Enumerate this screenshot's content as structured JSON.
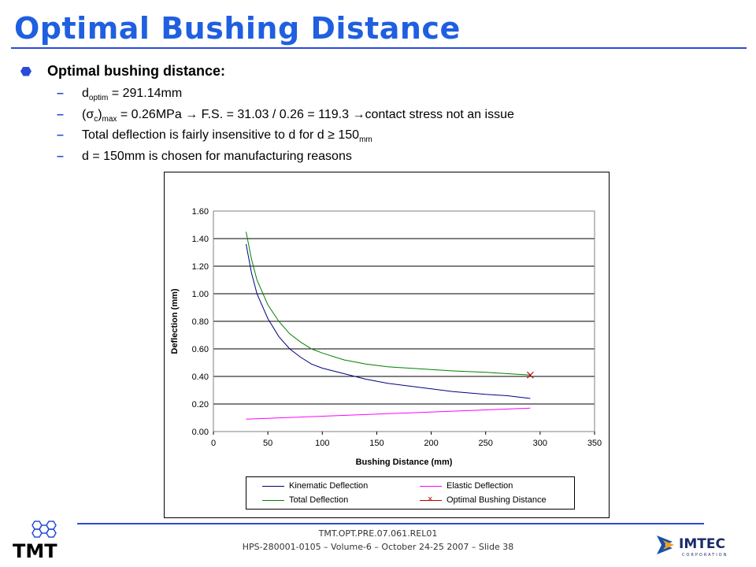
{
  "title": "Optimal Bushing Distance",
  "bullets": {
    "main": "Optimal bushing distance:",
    "line1_a": "d",
    "line1_sub": "optim",
    "line1_b": " = 291.14mm",
    "line2_a": " (σ",
    "line2_sub1": "c",
    "line2_b": ")",
    "line2_sub2": "max",
    "line2_c": " = 0.26MPa → F.S. = 31.03 / 0.26 = 119.3 →contact stress not an issue",
    "line3_a": "Total deflection is fairly insensitive to d for d ≥ 150",
    "line3_sub": "mm",
    "line4": "d = 150mm is chosen for manufacturing reasons"
  },
  "chart_data": {
    "type": "line",
    "xlabel": "Bushing Distance (mm)",
    "ylabel": "Deflection (mm)",
    "xlim": [
      0,
      350
    ],
    "ylim": [
      0,
      1.6
    ],
    "xticks": [
      "0",
      "50",
      "100",
      "150",
      "200",
      "250",
      "300",
      "350"
    ],
    "yticks": [
      "0.00",
      "0.20",
      "0.40",
      "0.60",
      "0.80",
      "1.00",
      "1.20",
      "1.40",
      "1.60"
    ],
    "grid": "horizontal",
    "series": [
      {
        "name": "Kinematic Deflection",
        "color": "#000080",
        "x": [
          30,
          35,
          40,
          50,
          60,
          70,
          80,
          90,
          100,
          120,
          140,
          160,
          180,
          200,
          220,
          250,
          270,
          291
        ],
        "y": [
          1.36,
          1.15,
          1.0,
          0.82,
          0.69,
          0.6,
          0.54,
          0.49,
          0.46,
          0.42,
          0.38,
          0.35,
          0.33,
          0.31,
          0.29,
          0.27,
          0.26,
          0.24
        ]
      },
      {
        "name": "Elastic Deflection",
        "color": "#ff00ff",
        "x": [
          30,
          291
        ],
        "y": [
          0.09,
          0.17
        ]
      },
      {
        "name": "Total Deflection",
        "color": "#008000",
        "x": [
          30,
          35,
          40,
          50,
          60,
          70,
          80,
          90,
          100,
          120,
          140,
          160,
          180,
          200,
          220,
          250,
          270,
          291
        ],
        "y": [
          1.45,
          1.25,
          1.1,
          0.92,
          0.8,
          0.71,
          0.65,
          0.6,
          0.57,
          0.52,
          0.49,
          0.47,
          0.46,
          0.45,
          0.44,
          0.43,
          0.42,
          0.41
        ]
      },
      {
        "name": "Optimal Bushing Distance",
        "color": "#c00000",
        "marker": "x",
        "x": [
          291
        ],
        "y": [
          0.41
        ]
      }
    ]
  },
  "footer": {
    "line1": "TMT.OPT.PRE.07.061.REL01",
    "line2": "HPS-280001-0105  – Volume-6 – October 24-25 2007 – Slide 38"
  },
  "logos": {
    "tmt": "TMT",
    "imtec": "IMTEC",
    "imtec_sub": "CORPORATION"
  }
}
